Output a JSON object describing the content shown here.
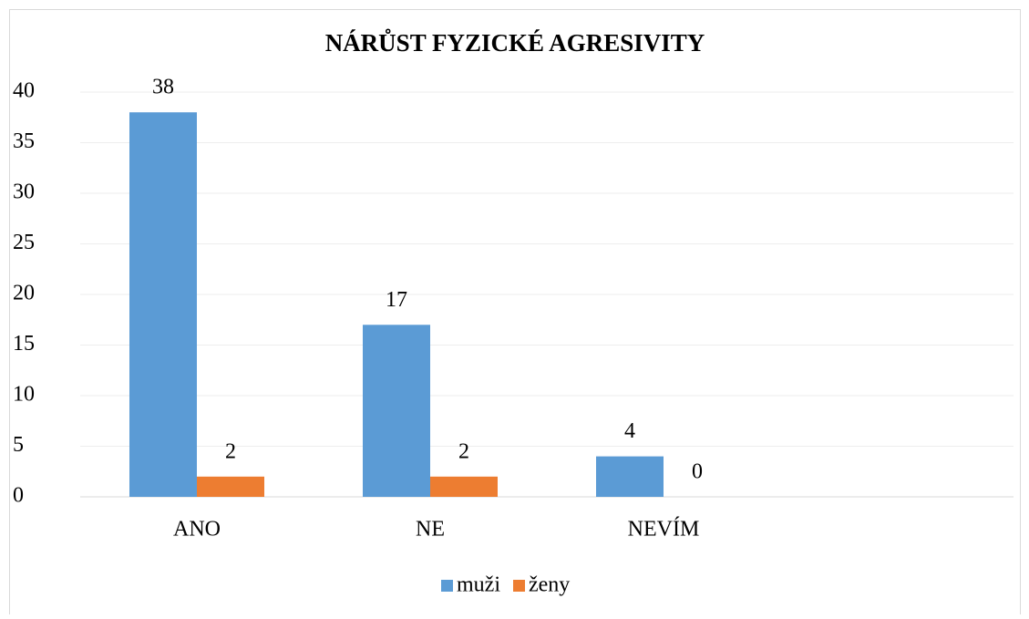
{
  "chart_data": {
    "type": "bar",
    "title": "NÁRŮST FYZICKÉ AGRESIVITY",
    "categories": [
      "ANO",
      "NE",
      "NEVÍM",
      null
    ],
    "series": [
      {
        "name": "muži",
        "color": "#5b9bd5",
        "values": [
          38,
          17,
          4,
          null
        ]
      },
      {
        "name": "ženy",
        "color": "#ed7d31",
        "values": [
          2,
          2,
          0,
          null
        ]
      }
    ],
    "ylim": [
      0,
      40
    ],
    "yticks": [
      0,
      5,
      10,
      15,
      20,
      25,
      30,
      35,
      40
    ],
    "grid": true,
    "legend": "bottom"
  }
}
